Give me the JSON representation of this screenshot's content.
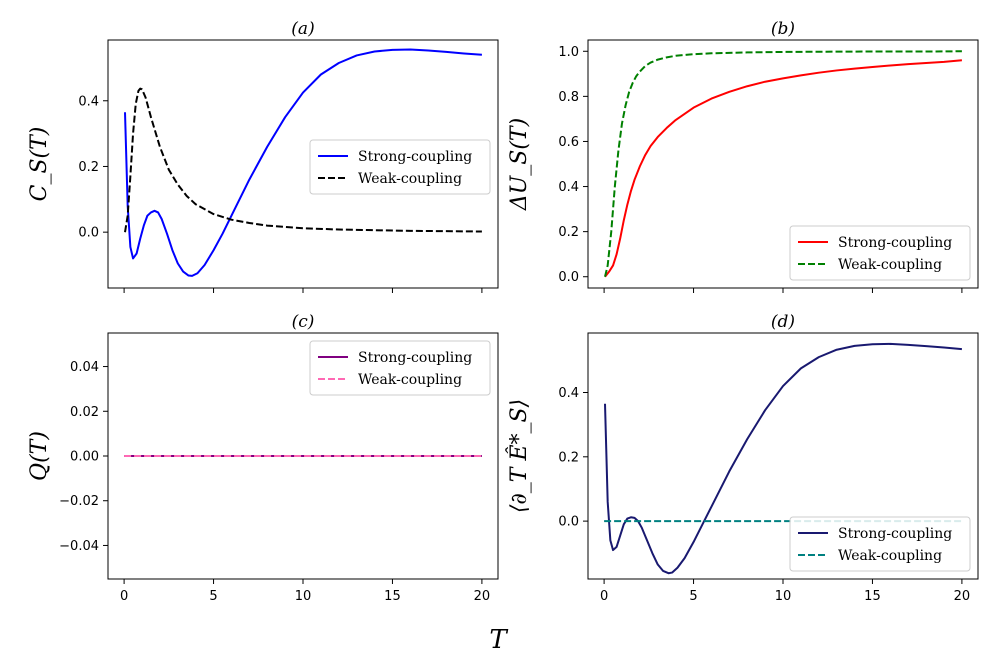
{
  "figure": {
    "xlabel": "T",
    "colors": {
      "strong_a": "#0000ff",
      "weak_a": "#000000",
      "strong_b": "#ff0000",
      "weak_b": "#008000",
      "strong_c": "#800080",
      "weak_c": "#ff69b4",
      "strong_d": "#191970",
      "weak_d": "#008080"
    }
  },
  "chart_data": [
    {
      "id": "a",
      "type": "line",
      "title": "(a)",
      "ylabel": "C_S(T)",
      "xlim": [
        -0.9,
        20.9
      ],
      "ylim": [
        -0.17,
        0.585
      ],
      "xticks": [
        0,
        5,
        10,
        15,
        20
      ],
      "xtick_labels_visible": false,
      "yticks": [
        0.0,
        0.2,
        0.4
      ],
      "ytick_labels": [
        "0.0",
        "0.2",
        "0.4"
      ],
      "legend_position": "center-right",
      "series": [
        {
          "name": "Strong-coupling",
          "style": "solid",
          "color": "#0000ff",
          "x": [
            0.05,
            0.2,
            0.35,
            0.5,
            0.7,
            0.9,
            1.1,
            1.3,
            1.5,
            1.7,
            1.9,
            2.1,
            2.4,
            2.7,
            3.0,
            3.3,
            3.6,
            3.8,
            4.1,
            4.5,
            5.0,
            5.5,
            6.0,
            7.0,
            8.0,
            9.0,
            10.0,
            11.0,
            12.0,
            13.0,
            14.0,
            15.0,
            16.0,
            17.0,
            18.0,
            19.0,
            20.0
          ],
          "y": [
            0.365,
            0.08,
            -0.045,
            -0.08,
            -0.065,
            -0.02,
            0.02,
            0.05,
            0.06,
            0.065,
            0.06,
            0.04,
            -0.005,
            -0.055,
            -0.095,
            -0.12,
            -0.132,
            -0.133,
            -0.125,
            -0.1,
            -0.055,
            -0.005,
            0.05,
            0.16,
            0.26,
            0.35,
            0.425,
            0.48,
            0.515,
            0.538,
            0.55,
            0.555,
            0.556,
            0.553,
            0.549,
            0.544,
            0.54
          ]
        },
        {
          "name": "Weak-coupling",
          "style": "dashed",
          "color": "#000000",
          "x": [
            0.05,
            0.2,
            0.35,
            0.5,
            0.65,
            0.8,
            0.9,
            1.0,
            1.2,
            1.5,
            2.0,
            2.5,
            3.0,
            3.5,
            4.0,
            5.0,
            6.0,
            7.0,
            8.0,
            10.0,
            12.0,
            14.0,
            16.0,
            18.0,
            20.0
          ],
          "y": [
            0.0,
            0.05,
            0.17,
            0.3,
            0.39,
            0.43,
            0.437,
            0.435,
            0.41,
            0.35,
            0.26,
            0.19,
            0.145,
            0.11,
            0.085,
            0.055,
            0.038,
            0.028,
            0.02,
            0.012,
            0.008,
            0.006,
            0.004,
            0.003,
            0.002
          ]
        }
      ]
    },
    {
      "id": "b",
      "type": "line",
      "title": "(b)",
      "ylabel": "ΔU_S(T)",
      "xlim": [
        -0.9,
        20.9
      ],
      "ylim": [
        -0.05,
        1.05
      ],
      "xticks": [
        0,
        5,
        10,
        15,
        20
      ],
      "xtick_labels_visible": false,
      "yticks": [
        0.0,
        0.2,
        0.4,
        0.6,
        0.8,
        1.0
      ],
      "ytick_labels": [
        "0.0",
        "0.2",
        "0.4",
        "0.6",
        "0.8",
        "1.0"
      ],
      "legend_position": "lower-right",
      "series": [
        {
          "name": "Strong-coupling",
          "style": "solid",
          "color": "#ff0000",
          "x": [
            0.05,
            0.3,
            0.5,
            0.7,
            0.9,
            1.1,
            1.3,
            1.5,
            1.7,
            2.0,
            2.3,
            2.6,
            3.0,
            3.5,
            4.0,
            5.0,
            6.0,
            7.0,
            8.0,
            9.0,
            10.0,
            11.0,
            12.0,
            13.0,
            14.0,
            15.0,
            16.0,
            17.0,
            18.0,
            19.0,
            20.0
          ],
          "y": [
            0.0,
            0.025,
            0.05,
            0.1,
            0.17,
            0.25,
            0.32,
            0.38,
            0.43,
            0.49,
            0.54,
            0.58,
            0.62,
            0.66,
            0.695,
            0.75,
            0.79,
            0.82,
            0.845,
            0.865,
            0.88,
            0.893,
            0.905,
            0.915,
            0.923,
            0.93,
            0.937,
            0.943,
            0.948,
            0.953,
            0.96
          ]
        },
        {
          "name": "Weak-coupling",
          "style": "dashed",
          "color": "#008000",
          "x": [
            0.05,
            0.2,
            0.4,
            0.6,
            0.8,
            1.0,
            1.2,
            1.4,
            1.6,
            1.8,
            2.0,
            2.3,
            2.6,
            3.0,
            3.5,
            4.0,
            5.0,
            6.0,
            8.0,
            10.0,
            12.0,
            15.0,
            18.0,
            20.0
          ],
          "y": [
            0.0,
            0.05,
            0.2,
            0.4,
            0.56,
            0.68,
            0.76,
            0.82,
            0.86,
            0.89,
            0.91,
            0.935,
            0.95,
            0.963,
            0.973,
            0.98,
            0.987,
            0.991,
            0.995,
            0.997,
            0.998,
            0.999,
            0.999,
            1.0
          ]
        }
      ]
    },
    {
      "id": "c",
      "type": "line",
      "title": "(c)",
      "ylabel": "Q(T)",
      "xlim": [
        -0.9,
        20.9
      ],
      "ylim": [
        -0.055,
        0.055
      ],
      "xticks": [
        0,
        5,
        10,
        15,
        20
      ],
      "xtick_labels": [
        "0",
        "5",
        "10",
        "15",
        "20"
      ],
      "yticks": [
        -0.04,
        -0.02,
        0.0,
        0.02,
        0.04
      ],
      "ytick_labels": [
        "−0.04",
        "−0.02",
        "0.00",
        "0.02",
        "0.04"
      ],
      "legend_position": "top-right",
      "series": [
        {
          "name": "Strong-coupling",
          "style": "solid",
          "color": "#800080",
          "x": [
            0.0,
            20.0
          ],
          "y": [
            0.0,
            0.0
          ]
        },
        {
          "name": "Weak-coupling",
          "style": "dashed",
          "color": "#ff69b4",
          "x": [
            0.0,
            20.0
          ],
          "y": [
            0.0,
            0.0
          ]
        }
      ]
    },
    {
      "id": "d",
      "type": "line",
      "title": "(d)",
      "ylabel": "⟨∂_T Ê*_S⟩",
      "xlim": [
        -0.9,
        20.9
      ],
      "ylim": [
        -0.18,
        0.585
      ],
      "xticks": [
        0,
        5,
        10,
        15,
        20
      ],
      "xtick_labels": [
        "0",
        "5",
        "10",
        "15",
        "20"
      ],
      "yticks": [
        0.0,
        0.2,
        0.4
      ],
      "ytick_labels": [
        "0.0",
        "0.2",
        "0.4"
      ],
      "legend_position": "lower-right",
      "series": [
        {
          "name": "Strong-coupling",
          "style": "solid",
          "color": "#191970",
          "x": [
            0.05,
            0.2,
            0.35,
            0.5,
            0.7,
            0.9,
            1.1,
            1.3,
            1.5,
            1.7,
            1.9,
            2.1,
            2.4,
            2.7,
            3.0,
            3.3,
            3.6,
            3.8,
            4.1,
            4.5,
            5.0,
            5.5,
            6.0,
            7.0,
            8.0,
            9.0,
            10.0,
            11.0,
            12.0,
            13.0,
            14.0,
            15.0,
            16.0,
            17.0,
            18.0,
            19.0,
            20.0
          ],
          "y": [
            0.365,
            0.06,
            -0.06,
            -0.09,
            -0.08,
            -0.045,
            -0.01,
            0.008,
            0.012,
            0.01,
            0.0,
            -0.02,
            -0.06,
            -0.1,
            -0.135,
            -0.155,
            -0.162,
            -0.16,
            -0.145,
            -0.115,
            -0.065,
            -0.01,
            0.045,
            0.155,
            0.255,
            0.345,
            0.42,
            0.475,
            0.51,
            0.533,
            0.545,
            0.55,
            0.551,
            0.548,
            0.544,
            0.54,
            0.535
          ]
        },
        {
          "name": "Weak-coupling",
          "style": "dashed",
          "color": "#008080",
          "x": [
            0.0,
            20.0
          ],
          "y": [
            0.0,
            0.0
          ]
        }
      ]
    }
  ]
}
